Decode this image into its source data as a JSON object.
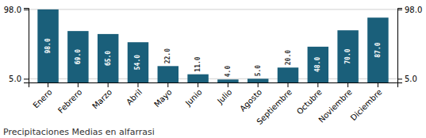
{
  "chart_data": {
    "type": "bar",
    "title": "Precipitaciones Medias en alfarrasi",
    "categories": [
      "Enero",
      "Febrero",
      "Marzo",
      "Abril",
      "Mayo",
      "Junio",
      "Julio",
      "Agosto",
      "Septiembre",
      "Octubre",
      "Noviembre",
      "Diciembre"
    ],
    "values": [
      98.0,
      69.0,
      65.0,
      54.0,
      22.0,
      11.0,
      4.0,
      5.0,
      20.0,
      48.0,
      70.0,
      87.0
    ],
    "value_labels": [
      "98.0",
      "69.0",
      "65.0",
      "54.0",
      "22.0",
      "11.0",
      "4.0",
      "5.0",
      "20.0",
      "48.0",
      "70.0",
      "87.0"
    ],
    "color": "#1a5f7a",
    "ylim": [
      0,
      100
    ],
    "yticks": [
      {
        "value": 5,
        "label": "5.0"
      },
      {
        "value": 98,
        "label": "98.0"
      }
    ],
    "y2lim": [
      0,
      100
    ],
    "y2ticks": [
      {
        "value": 5,
        "label": "5.0"
      },
      {
        "value": 98,
        "label": "98.0"
      }
    ],
    "grid": true,
    "data_labels": true
  }
}
